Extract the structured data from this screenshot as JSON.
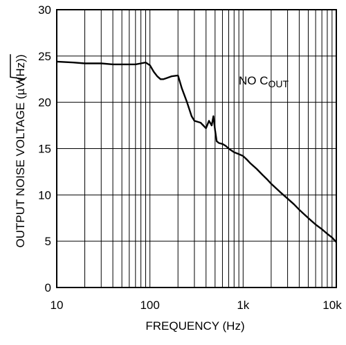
{
  "chart_data": {
    "type": "line",
    "xlabel": "FREQUENCY (Hz)",
    "ylabel": {
      "prefix": "OUTPUT NOISE VOLTAGE (",
      "unit_mu": "µ",
      "unit_V": "V",
      "unit_radicand": "(Hz)",
      "suffix": ")"
    },
    "x_scale": "log",
    "xlim": [
      10,
      10000
    ],
    "ylim": [
      0,
      30
    ],
    "grid": true,
    "x_ticks": [
      {
        "value": 10,
        "label": "10"
      },
      {
        "value": 100,
        "label": "100"
      },
      {
        "value": 1000,
        "label": "1k"
      },
      {
        "value": 10000,
        "label": "10k"
      }
    ],
    "y_ticks": [
      {
        "value": 0,
        "label": "0"
      },
      {
        "value": 5,
        "label": "5"
      },
      {
        "value": 10,
        "label": "10"
      },
      {
        "value": 15,
        "label": "15"
      },
      {
        "value": 20,
        "label": "20"
      },
      {
        "value": 25,
        "label": "25"
      },
      {
        "value": 30,
        "label": "30"
      }
    ],
    "annotation": {
      "text": "NO C",
      "subscript": "OUT"
    },
    "series": [
      {
        "x": [
          10,
          15,
          20,
          30,
          40,
          50,
          60,
          70,
          80,
          90,
          100,
          110,
          120,
          130,
          140,
          150,
          170,
          200,
          220,
          250,
          280,
          300,
          350,
          400,
          430,
          460,
          480,
          500,
          520,
          550,
          600,
          650,
          700,
          750,
          800,
          900,
          1000,
          1100,
          1200,
          1400,
          1600,
          1800,
          2000,
          2500,
          3000,
          3500,
          4000,
          5000,
          6000,
          7000,
          8000,
          9000,
          10000
        ],
        "y": [
          24.4,
          24.3,
          24.2,
          24.2,
          24.1,
          24.1,
          24.1,
          24.1,
          24.2,
          24.3,
          24.0,
          23.3,
          22.8,
          22.5,
          22.5,
          22.6,
          22.8,
          22.9,
          21.5,
          20.0,
          18.5,
          18.0,
          17.8,
          17.2,
          18.0,
          17.5,
          18.5,
          17.0,
          15.8,
          15.6,
          15.5,
          15.3,
          15.0,
          14.8,
          14.6,
          14.4,
          14.2,
          13.8,
          13.4,
          12.8,
          12.2,
          11.7,
          11.2,
          10.3,
          9.6,
          9.0,
          8.4,
          7.5,
          6.8,
          6.3,
          5.8,
          5.4,
          4.9
        ]
      }
    ]
  }
}
